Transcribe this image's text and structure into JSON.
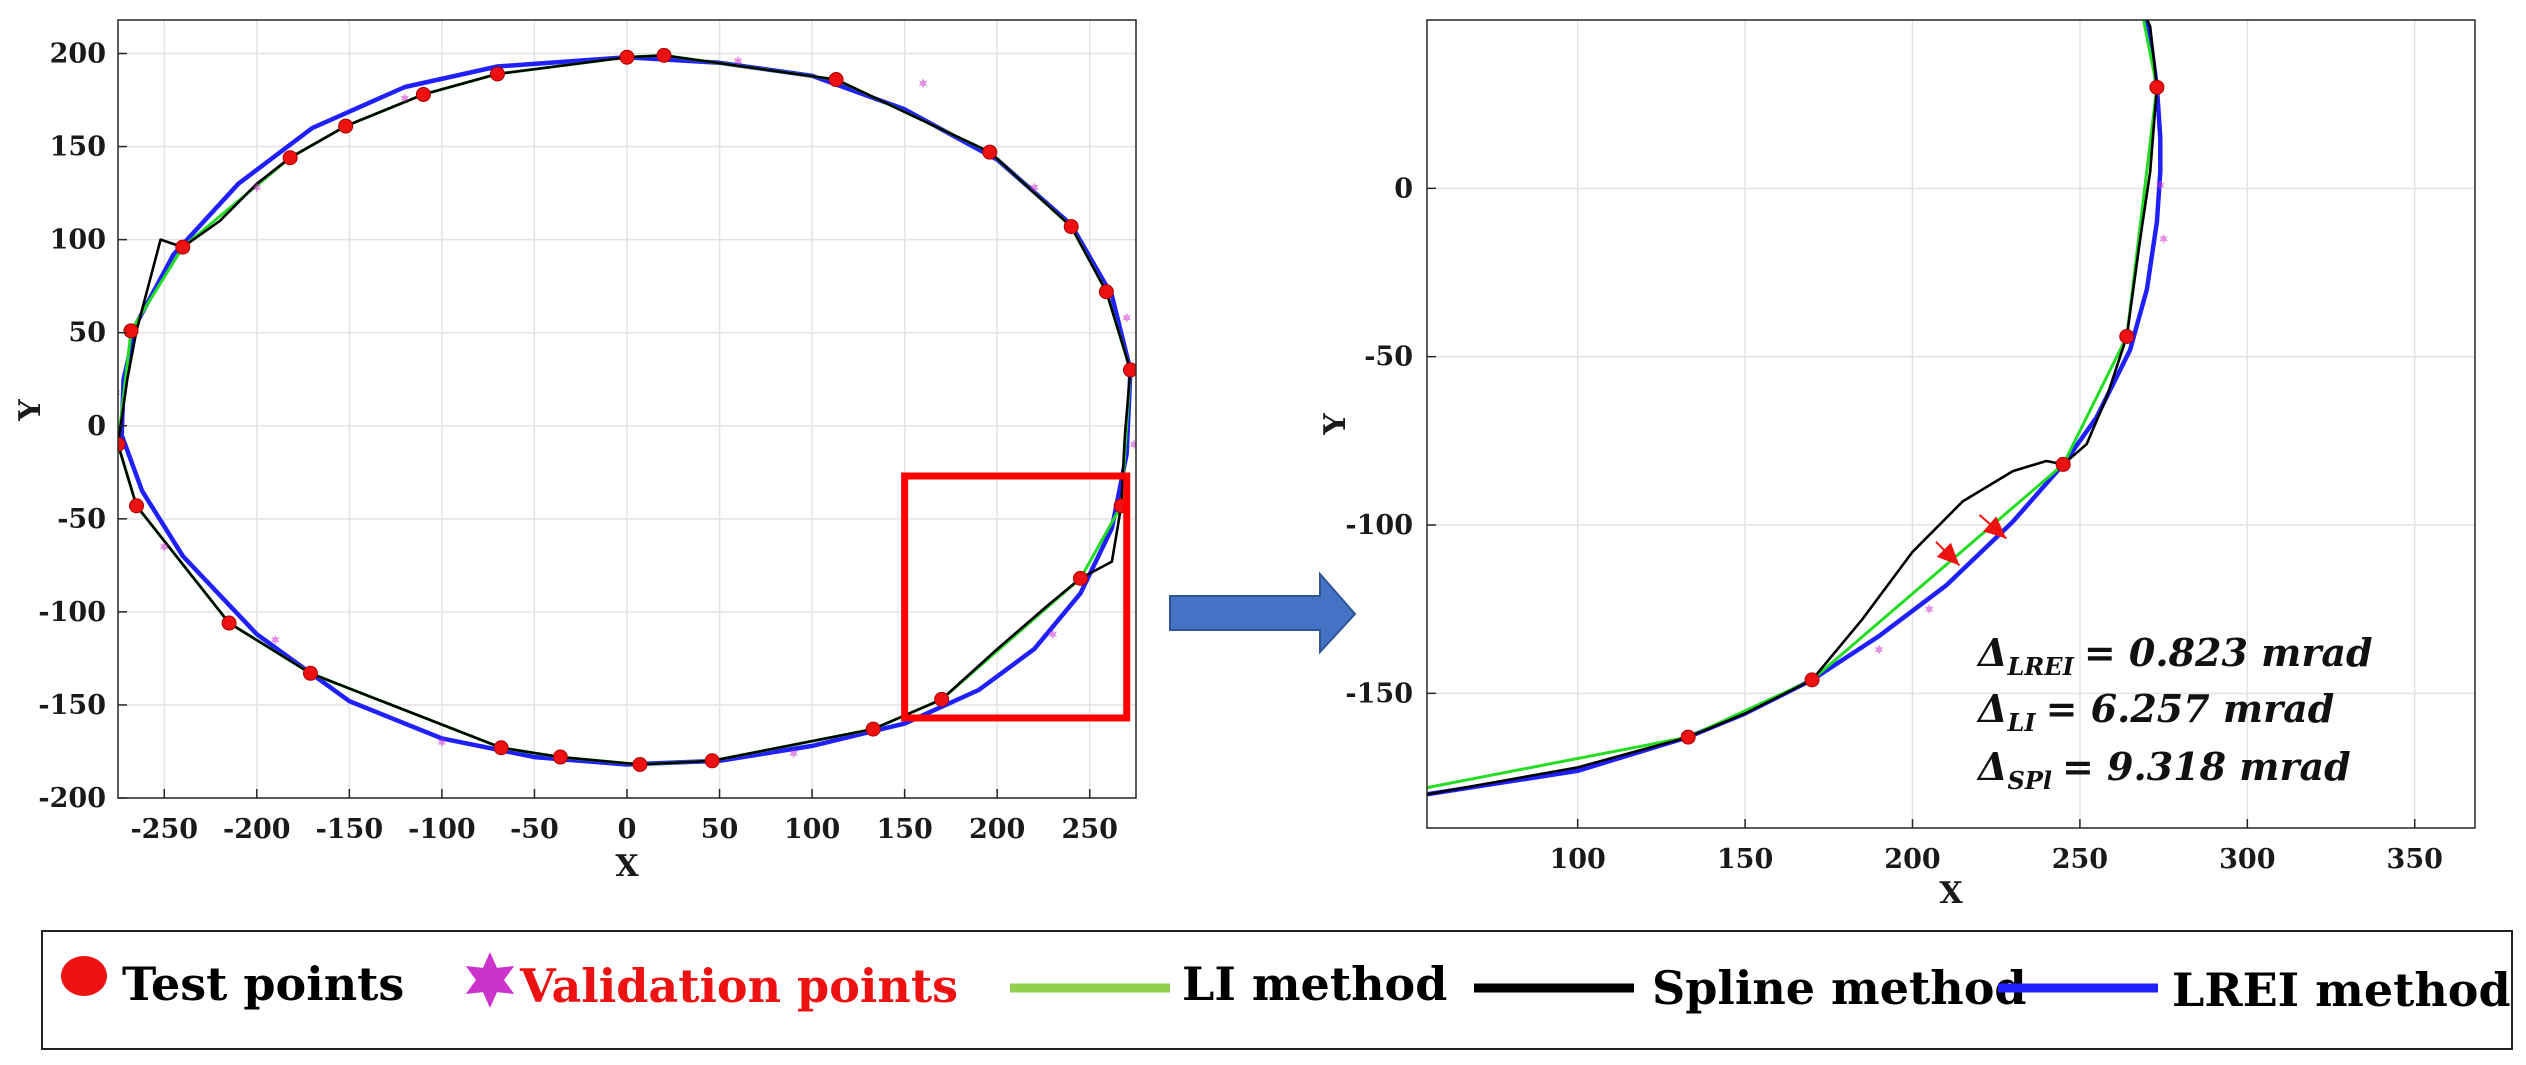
{
  "chart_data": [
    {
      "type": "line",
      "panel": "full-contour",
      "title": "",
      "xlabel": "X",
      "ylabel": "Y",
      "xlim": [
        -275,
        275
      ],
      "ylim": [
        -200,
        218
      ],
      "xticks": [
        -250,
        -200,
        -150,
        -100,
        -50,
        0,
        50,
        100,
        150,
        200,
        250
      ],
      "yticks": [
        -200,
        -150,
        -100,
        -50,
        0,
        50,
        100,
        150,
        200
      ],
      "grid": true,
      "series": [
        {
          "name": "LREI method",
          "color": "#2020ff",
          "x": [
            0,
            50,
            100,
            150,
            200,
            240,
            262,
            272,
            270,
            262,
            245,
            220,
            190,
            150,
            100,
            50,
            0,
            -50,
            -100,
            -150,
            -200,
            -240,
            -262,
            -273,
            -272,
            -265,
            -245,
            -210,
            -170,
            -120,
            -70,
            0
          ],
          "y": [
            198,
            195,
            188,
            170,
            143,
            108,
            70,
            30,
            -15,
            -55,
            -90,
            -120,
            -142,
            -160,
            -172,
            -180,
            -182,
            -178,
            -168,
            -148,
            -112,
            -70,
            -35,
            -5,
            25,
            55,
            92,
            130,
            160,
            182,
            193,
            198
          ]
        },
        {
          "name": "LI method",
          "color": "#22dd22",
          "x": [
            0,
            20,
            113,
            196,
            240,
            259,
            272,
            267,
            245,
            170,
            133,
            46,
            7,
            -36,
            -68,
            -171,
            -215,
            -265,
            -275,
            -268,
            -240,
            -182,
            -152,
            -110,
            -70,
            0
          ],
          "y": [
            198,
            199,
            186,
            147,
            107,
            72,
            30,
            -43,
            -82,
            -147,
            -163,
            -180,
            -182,
            -178,
            -173,
            -133,
            -106,
            -43,
            -10,
            51,
            96,
            144,
            161,
            178,
            189,
            198
          ]
        },
        {
          "name": "Spline method",
          "color": "#000000",
          "x": [
            0,
            20,
            113,
            196,
            240,
            259,
            272,
            269,
            267,
            262,
            245,
            228,
            200,
            170,
            133,
            46,
            7,
            -36,
            -68,
            -171,
            -215,
            -265,
            -275,
            -270,
            -265,
            -252,
            -240,
            -220,
            -200,
            -182,
            -152,
            -110,
            -70,
            0
          ],
          "y": [
            198,
            199,
            186,
            147,
            107,
            72,
            30,
            -5,
            -43,
            -73,
            -82,
            -96,
            -120,
            -147,
            -163,
            -180,
            -182,
            -178,
            -173,
            -133,
            -106,
            -43,
            -10,
            25,
            51,
            100,
            96,
            110,
            130,
            144,
            161,
            178,
            189,
            198
          ]
        },
        {
          "name": "Test points",
          "color": "#ee1111",
          "x": [
            0,
            20,
            113,
            196,
            240,
            259,
            272,
            267,
            245,
            170,
            133,
            46,
            7,
            -36,
            -68,
            -171,
            -215,
            -265,
            -275,
            -268,
            -240,
            -182,
            -152,
            -110,
            -70
          ],
          "y": [
            198,
            199,
            186,
            147,
            107,
            72,
            30,
            -43,
            -82,
            -147,
            -163,
            -180,
            -182,
            -178,
            -173,
            -133,
            -106,
            -43,
            -10,
            51,
            96,
            144,
            161,
            178,
            189
          ]
        },
        {
          "name": "Validation points",
          "color": "#cc33cc",
          "x": [
            60,
            160,
            220,
            270,
            274,
            230,
            90,
            -100,
            -190,
            -250,
            -276,
            -200,
            -120
          ],
          "y": [
            196,
            184,
            128,
            58,
            -10,
            -112,
            -176,
            -170,
            -115,
            -65,
            18,
            128,
            176
          ]
        }
      ],
      "zoom_box": {
        "x": [
          150,
          270
        ],
        "y": [
          -157,
          -27
        ],
        "color": "#ff0000"
      }
    },
    {
      "type": "line",
      "panel": "zoomed-region",
      "title": "",
      "xlabel": "X",
      "ylabel": "Y",
      "xlim": [
        55,
        368
      ],
      "ylim": [
        -190,
        50
      ],
      "xticks": [
        100,
        150,
        200,
        250,
        300,
        350
      ],
      "yticks": [
        -150,
        -100,
        -50,
        0
      ],
      "grid": true,
      "series": [
        {
          "name": "LREI method",
          "color": "#2020ff",
          "x": [
            55,
            100,
            133,
            150,
            170,
            190,
            210,
            230,
            245,
            255,
            265,
            270,
            273,
            274,
            274,
            273,
            271,
            268
          ],
          "y": [
            -180,
            -173,
            -163,
            -156,
            -146,
            -133,
            -118,
            -99,
            -82,
            -68,
            -48,
            -30,
            -10,
            5,
            15,
            30,
            45,
            55
          ]
        },
        {
          "name": "LI method",
          "color": "#22dd22",
          "x": [
            55,
            133,
            170,
            245,
            264,
            273,
            268
          ],
          "y": [
            -178,
            -163,
            -146,
            -82,
            -44,
            30,
            55
          ]
        },
        {
          "name": "Spline method",
          "color": "#000000",
          "x": [
            55,
            100,
            133,
            150,
            170,
            185,
            200,
            215,
            230,
            240,
            245,
            252,
            258,
            264,
            268,
            271,
            273,
            271,
            268
          ],
          "y": [
            -180,
            -172,
            -163,
            -156,
            -146,
            -128,
            -108,
            -93,
            -84,
            -81,
            -82,
            -76,
            -62,
            -44,
            -15,
            5,
            30,
            48,
            55
          ]
        },
        {
          "name": "Test points",
          "color": "#ee1111",
          "x": [
            133,
            170,
            245,
            264,
            273
          ],
          "y": [
            -163,
            -146,
            -82,
            -44,
            30
          ]
        },
        {
          "name": "Validation points",
          "color": "#cc33cc",
          "x": [
            190,
            205,
            274,
            275
          ],
          "y": [
            -137,
            -125,
            1,
            -15
          ]
        }
      ],
      "arrows": [
        {
          "x": [
            220,
            228
          ],
          "y": [
            -97,
            -104
          ]
        },
        {
          "x": [
            207,
            214
          ],
          "y": [
            -105,
            -112
          ]
        }
      ],
      "annotations": [
        {
          "symbol": "Δ",
          "subscript": "LREI",
          "value": "= 0.823 mrad"
        },
        {
          "symbol": "Δ",
          "subscript": "LI",
          "value": "= 6.257 mrad"
        },
        {
          "symbol": "Δ",
          "subscript": "SPl",
          "value": "= 9.318 mrad"
        }
      ]
    }
  ],
  "legend": {
    "placement": "bottom",
    "items": [
      {
        "label": "Test points",
        "marker": "circle",
        "color": "#ee1111",
        "text_color": "#000000"
      },
      {
        "label": "Validation points",
        "marker": "star",
        "color": "#cc33cc",
        "text_color": "#ee1111"
      },
      {
        "label": "LI method",
        "marker": "line",
        "color": "#8fd14f",
        "text_color": "#000000"
      },
      {
        "label": "Spline method",
        "marker": "line",
        "color": "#000000",
        "text_color": "#000000"
      },
      {
        "label": "LREI method",
        "marker": "line",
        "color": "#2222ff",
        "text_color": "#000000"
      }
    ]
  },
  "arrow_shape": {
    "color": "#4472c4",
    "stroke": "#2f5597"
  }
}
